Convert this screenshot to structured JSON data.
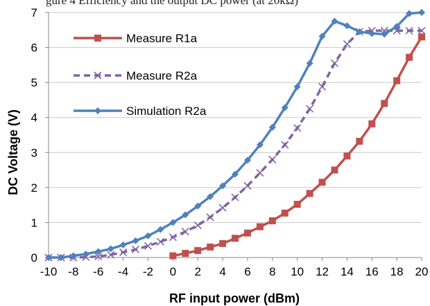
{
  "caption_fragment": "gure 4 Efficiency and the output DC power (at 20kΩ)",
  "chart_data": {
    "type": "line",
    "title": "",
    "xlabel": "RF input power (dBm)",
    "ylabel": "DC Voltage (V)",
    "xlim": [
      -10,
      20
    ],
    "ylim": [
      0,
      7
    ],
    "xticks": [
      -10,
      -8,
      -6,
      -4,
      -2,
      0,
      2,
      4,
      6,
      8,
      10,
      12,
      14,
      16,
      18,
      20
    ],
    "yticks": [
      0,
      1,
      2,
      3,
      4,
      5,
      6,
      7
    ],
    "grid": "horizontal",
    "legend": "upper-left",
    "series": [
      {
        "name": "Measure R1a",
        "color": "#C0504D",
        "marker": "square",
        "dash": "solid",
        "x": [
          0,
          1,
          2,
          3,
          4,
          5,
          6,
          7,
          8,
          9,
          10,
          11,
          12,
          13,
          14,
          15,
          16,
          17,
          18,
          19,
          20
        ],
        "y": [
          0.05,
          0.12,
          0.2,
          0.3,
          0.4,
          0.55,
          0.7,
          0.88,
          1.05,
          1.27,
          1.52,
          1.83,
          2.15,
          2.5,
          2.9,
          3.32,
          3.82,
          4.4,
          5.05,
          5.72,
          6.3
        ]
      },
      {
        "name": "Measure R2a",
        "color": "#8064A2",
        "marker": "x",
        "dash": "dashed",
        "x": [
          -10,
          -9,
          -8,
          -7,
          -6,
          -5,
          -4,
          -3,
          -2,
          -1,
          0,
          1,
          2,
          3,
          4,
          5,
          6,
          7,
          8,
          9,
          10,
          11,
          12,
          13,
          14,
          15,
          16,
          17,
          18,
          19,
          20
        ],
        "y": [
          0,
          0,
          0,
          0.01,
          0.03,
          0.08,
          0.15,
          0.23,
          0.33,
          0.45,
          0.58,
          0.74,
          0.92,
          1.15,
          1.42,
          1.72,
          2.05,
          2.42,
          2.8,
          3.22,
          3.7,
          4.25,
          4.88,
          5.55,
          6.1,
          6.45,
          6.48,
          6.48,
          6.48,
          6.48,
          6.48
        ]
      },
      {
        "name": "Simulation R2a",
        "color": "#4F81BD",
        "marker": "diamond",
        "dash": "solid",
        "x": [
          -10,
          -9,
          -8,
          -7,
          -6,
          -5,
          -4,
          -3,
          -2,
          -1,
          0,
          1,
          2,
          3,
          4,
          5,
          6,
          7,
          8,
          9,
          10,
          11,
          12,
          13,
          14,
          15,
          16,
          17,
          18,
          19,
          20
        ],
        "y": [
          0,
          0,
          0.05,
          0.1,
          0.17,
          0.25,
          0.36,
          0.48,
          0.62,
          0.8,
          1.0,
          1.22,
          1.47,
          1.74,
          2.05,
          2.38,
          2.78,
          3.22,
          3.72,
          4.28,
          4.88,
          5.55,
          6.32,
          6.75,
          6.62,
          6.45,
          6.4,
          6.38,
          6.6,
          6.97,
          7.0
        ]
      }
    ]
  }
}
